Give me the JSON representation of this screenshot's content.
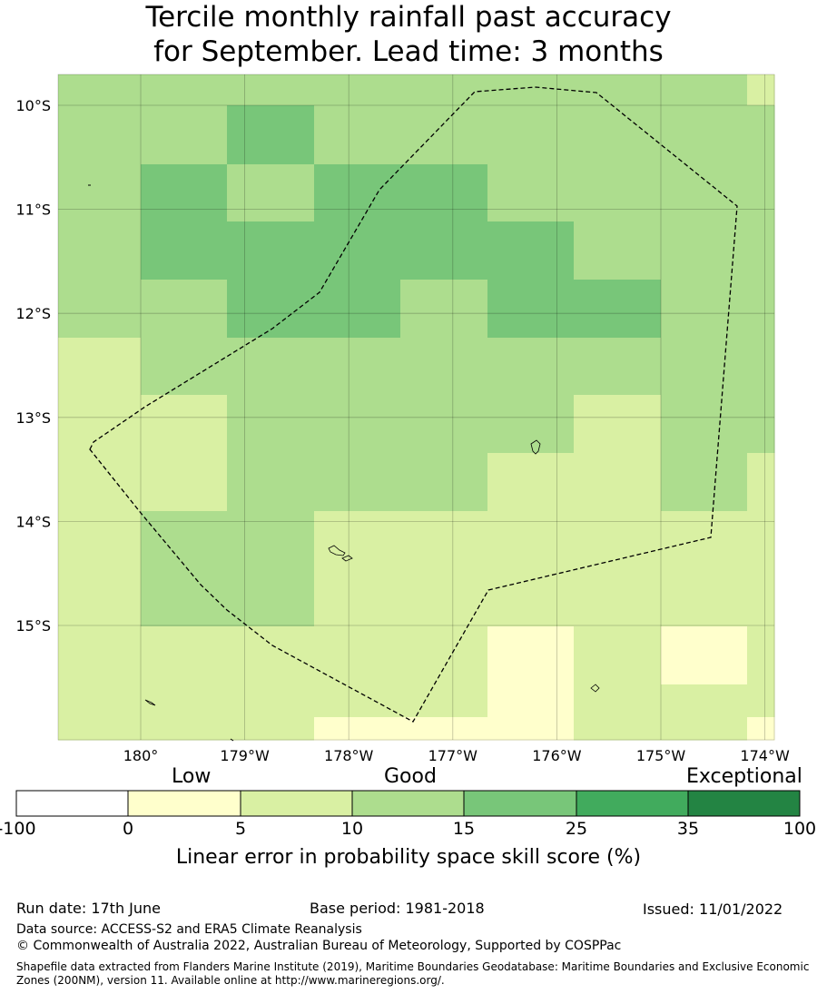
{
  "title": {
    "line1": "Tercile monthly rainfall past accuracy",
    "line2": "for September. Lead time: 3 months"
  },
  "map": {
    "lat_labels": [
      "10°S",
      "11°S",
      "12°S",
      "13°S",
      "14°S",
      "15°S"
    ],
    "lon_labels": [
      "180°",
      "179°W",
      "178°W",
      "177°W",
      "176°W",
      "175°W",
      "174°W"
    ],
    "lon_range": [
      179.2,
      186.1
    ],
    "lat_range": [
      -16.1,
      -9.7
    ],
    "cell_columns": [
      "edge",
      "180.4",
      "179.6",
      "178.7",
      "177.9",
      "177.0",
      "176.2",
      "175.4",
      "174.3"
    ],
    "cell_rows_top_to_bottom": [
      "9.85S",
      "10.3S",
      "10.9S",
      "11.4S",
      "11.9S",
      "12.5S",
      "13.1S",
      "13.6S",
      "14.1S",
      "14.6S",
      "15.1S",
      "15.6S",
      "16.0S"
    ],
    "skill_class_grid": [
      [
        2,
        2,
        2,
        2,
        2,
        2,
        2,
        2,
        1
      ],
      [
        2,
        2,
        3,
        2,
        2,
        2,
        2,
        2,
        2
      ],
      [
        2,
        3,
        2,
        3,
        3,
        2,
        2,
        2,
        2
      ],
      [
        2,
        3,
        3,
        3,
        3,
        3,
        2,
        2,
        2
      ],
      [
        2,
        2,
        3,
        3,
        2,
        3,
        3,
        2,
        2
      ],
      [
        1,
        2,
        2,
        2,
        2,
        2,
        2,
        2,
        2
      ],
      [
        1,
        1,
        2,
        2,
        2,
        2,
        1,
        2,
        2
      ],
      [
        1,
        1,
        2,
        2,
        2,
        1,
        1,
        2,
        1
      ],
      [
        1,
        2,
        2,
        1,
        1,
        1,
        1,
        1,
        1
      ],
      [
        1,
        2,
        2,
        1,
        1,
        1,
        1,
        1,
        1
      ],
      [
        1,
        1,
        1,
        1,
        1,
        0,
        1,
        0,
        1
      ],
      [
        1,
        1,
        1,
        1,
        1,
        0,
        1,
        1,
        1
      ],
      [
        1,
        1,
        1,
        0,
        0,
        0,
        1,
        1,
        0
      ]
    ],
    "eez_boundary_style": "dashed"
  },
  "colorbar": {
    "words": [
      "Low",
      "Good",
      "Exceptional"
    ],
    "ticks": [
      "-100",
      "0",
      "5",
      "10",
      "15",
      "25",
      "35",
      "100"
    ],
    "colors": [
      "#ffffff",
      "#ffffcc",
      "#d9f0a3",
      "#addd8e",
      "#78c679",
      "#41ab5d",
      "#238443"
    ],
    "label": "Linear error in probability space skill score (%)"
  },
  "footer": {
    "run_date": "Run date: 17th June",
    "base_period": "Base period: 1981-2018",
    "issued": "Issued: 11/01/2022",
    "data_source": "Data source: ACCESS-S2 and ERA5 Climate Reanalysis",
    "copyright": "© Commonwealth of Australia 2022, Australian Bureau of Meteorology, Supported by COSPPac",
    "shapefile": "Shapefile data extracted from Flanders Marine Institute (2019), Maritime Boundaries Geodatabase: Maritime Boundaries and Exclusive Economic Zones (200NM), version 11. Available online at http://www.marineregions.org/."
  }
}
